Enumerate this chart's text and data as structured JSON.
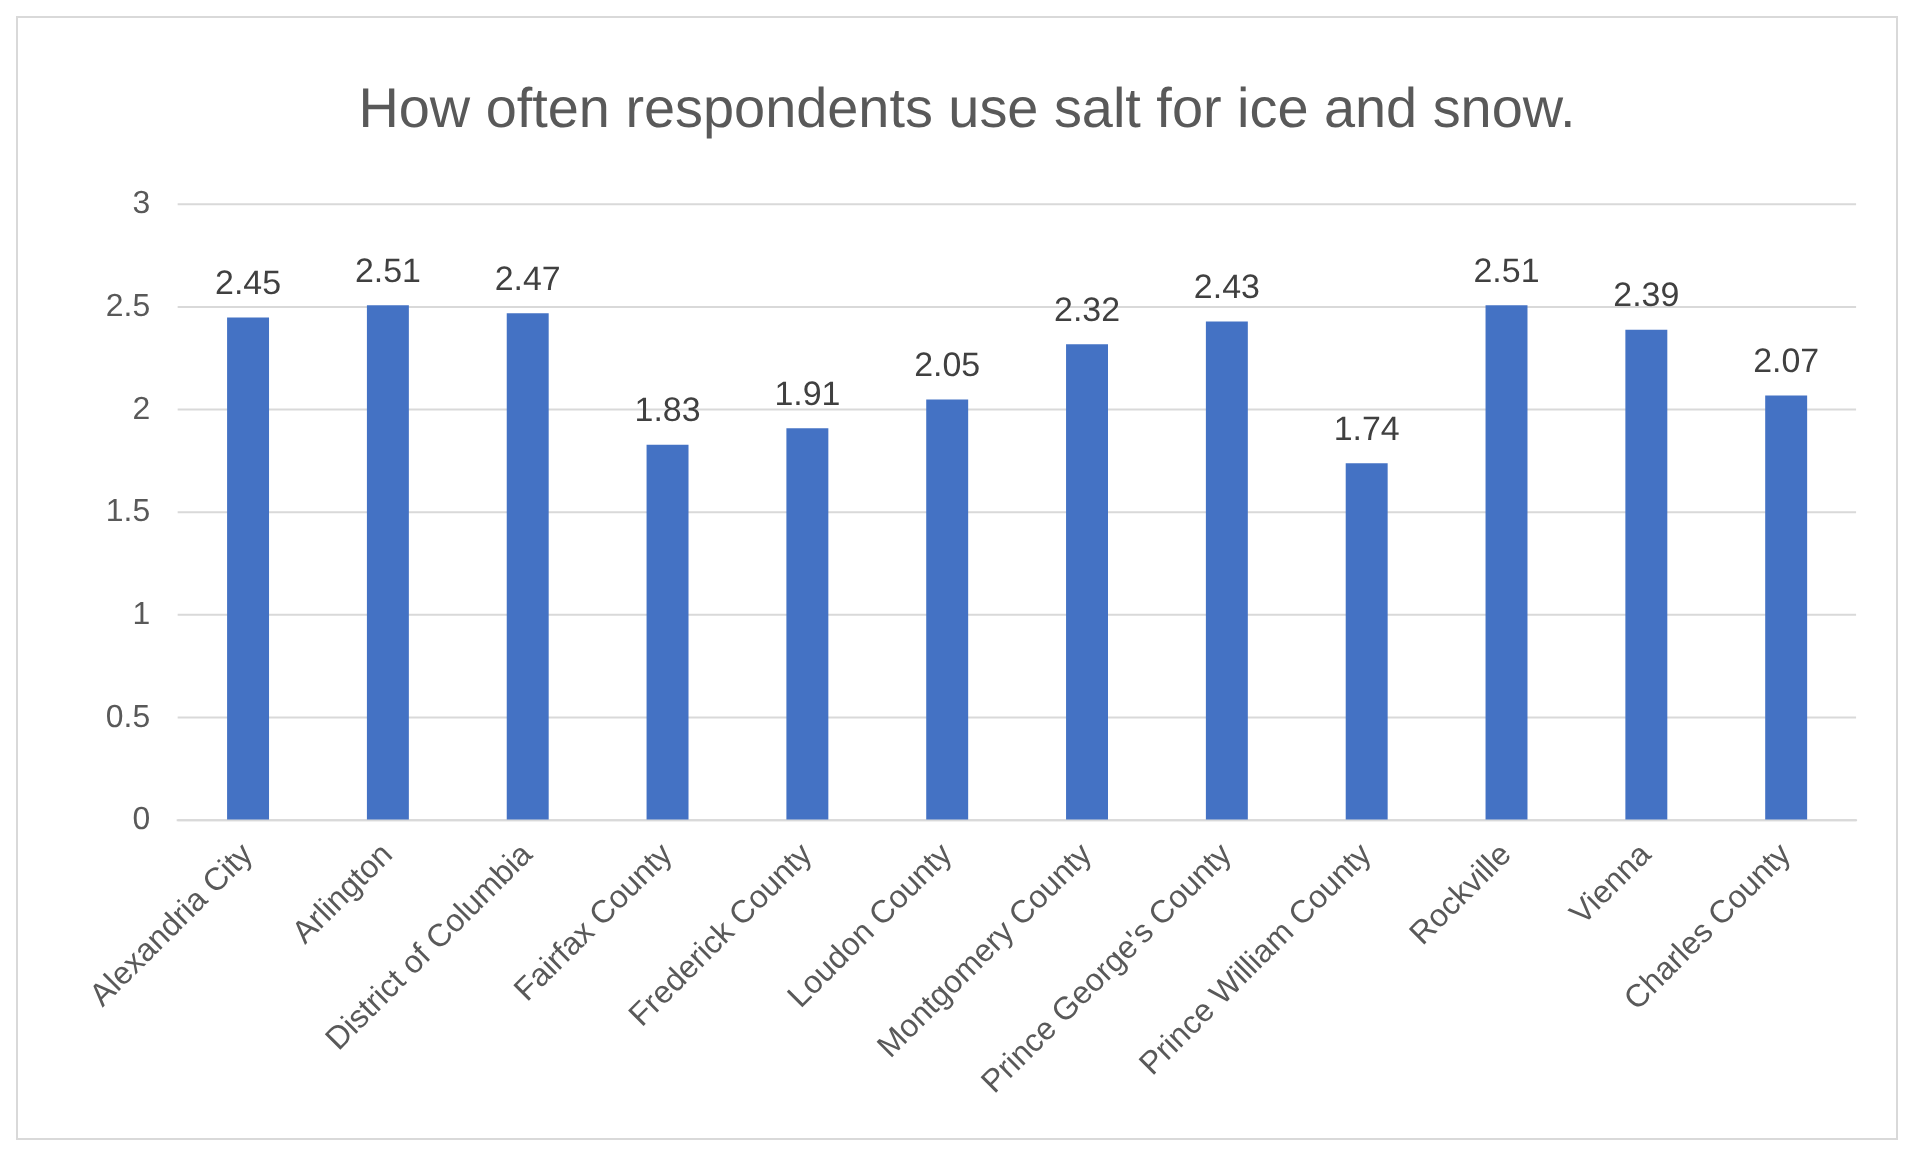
{
  "chart_data": {
    "type": "bar",
    "title": "How often respondents use salt for ice and snow.",
    "categories": [
      "Alexandria City",
      "Arlington",
      "District of Columbia",
      "Fairfax County",
      "Frederick County",
      "Loudon County",
      "Montgomery County",
      "Prince George's County",
      "Prince William County",
      "Rockville",
      "Vienna",
      "Charles County"
    ],
    "values": [
      2.45,
      2.51,
      2.47,
      1.83,
      1.91,
      2.05,
      2.32,
      2.43,
      1.74,
      2.51,
      2.39,
      2.07
    ],
    "color": "#4472c4",
    "ylim": [
      0,
      3
    ],
    "yticks": [
      0,
      0.5,
      1,
      1.5,
      2,
      2.5,
      3
    ],
    "grid": "y",
    "data_labels": true,
    "legend": false
  }
}
